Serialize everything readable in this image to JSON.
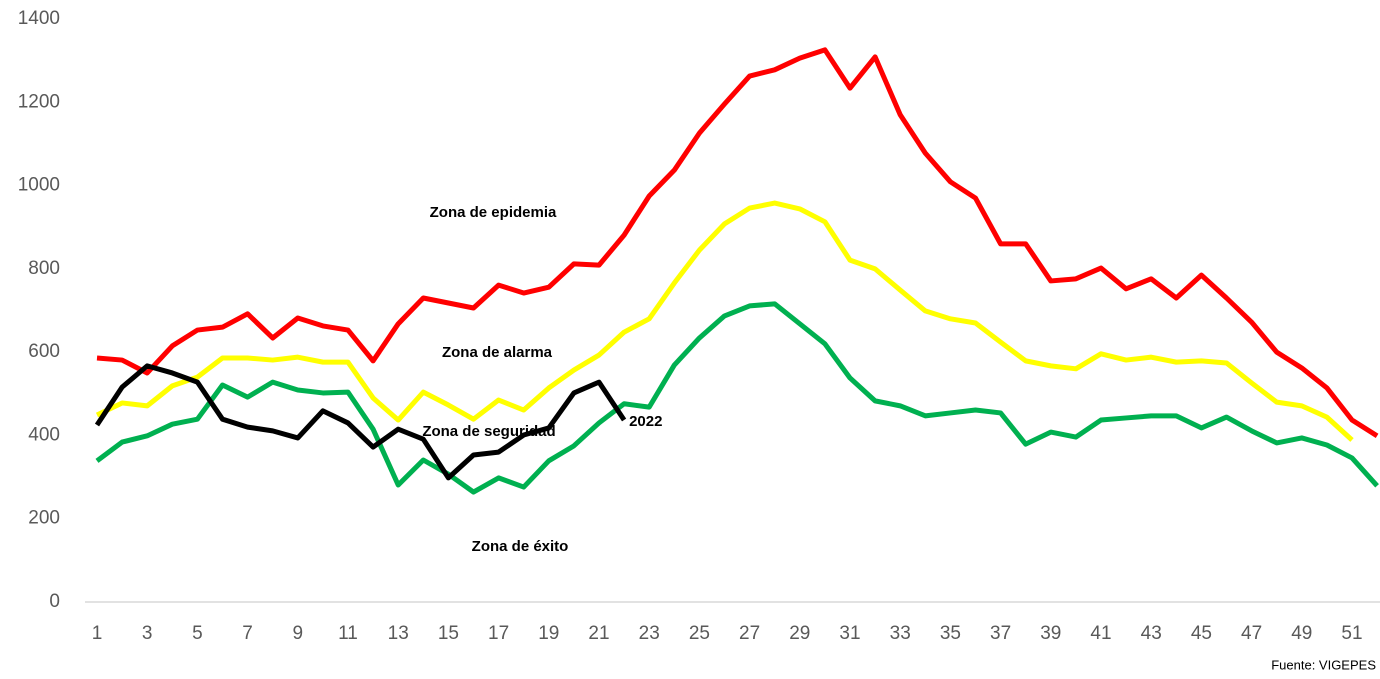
{
  "chart_data": {
    "type": "line",
    "categories": [
      1,
      null,
      3,
      null,
      5,
      null,
      7,
      null,
      9,
      null,
      11,
      null,
      13,
      null,
      15,
      null,
      17,
      null,
      19,
      null,
      21,
      null,
      23,
      null,
      25,
      null,
      27,
      null,
      29,
      null,
      31,
      null,
      33,
      null,
      35,
      null,
      37,
      null,
      39,
      null,
      41,
      null,
      43,
      null,
      45,
      null,
      47,
      null,
      49,
      null,
      51,
      null
    ],
    "ylim": [
      0,
      1400
    ],
    "yticks": [
      0,
      200,
      400,
      600,
      800,
      1000,
      1200,
      1400
    ],
    "grid": false,
    "series": [
      {
        "color": "#ff0000",
        "values": [
          586,
          581,
          550,
          615,
          653,
          660,
          692,
          634,
          682,
          663,
          653,
          579,
          668,
          730,
          718,
          706,
          761,
          742,
          756,
          812,
          809,
          881,
          975,
          1037,
          1126,
          1196,
          1263,
          1278,
          1306,
          1326,
          1234,
          1309,
          1170,
          1078,
          1009,
          970,
          860,
          860,
          771,
          776,
          802,
          752,
          776,
          730,
          785,
          730,
          672,
          600,
          562,
          514,
          437,
          399
        ]
      },
      {
        "color": "#ffff00",
        "values": [
          449,
          478,
          471,
          519,
          540,
          586,
          586,
          581,
          588,
          576,
          576,
          490,
          437,
          504,
          473,
          439,
          485,
          461,
          514,
          557,
          593,
          648,
          680,
          766,
          845,
          908,
          946,
          958,
          944,
          913,
          821,
          800,
          749,
          699,
          680,
          670,
          624,
          579,
          567,
          560,
          596,
          581,
          588,
          576,
          579,
          574,
          526,
          480,
          471,
          444,
          389,
          null
        ]
      },
      {
        "color": "#00b050",
        "values": [
          339,
          384,
          399,
          427,
          439,
          521,
          492,
          528,
          509,
          502,
          504,
          415,
          281,
          341,
          307,
          264,
          298,
          276,
          339,
          375,
          430,
          476,
          468,
          569,
          634,
          687,
          711,
          716,
          668,
          620,
          538,
          483,
          471,
          447,
          454,
          461,
          454,
          379,
          408,
          396,
          437,
          442,
          447,
          447,
          418,
          444,
          411,
          382,
          394,
          377,
          346,
          279
        ]
      },
      {
        "name": "2022",
        "color": "#000000",
        "values": [
          425,
          516,
          567,
          550,
          528,
          439,
          420,
          411,
          394,
          459,
          430,
          372,
          415,
          391,
          298,
          353,
          360,
          401,
          418,
          502,
          528,
          437,
          null,
          null,
          null,
          null,
          null,
          null,
          null,
          null,
          null,
          null,
          null,
          null,
          null,
          null,
          null,
          null,
          null,
          null,
          null,
          null,
          null,
          null,
          null,
          null,
          null,
          null,
          null,
          null,
          null,
          null
        ]
      }
    ],
    "annotations": [
      "Zona de epidemia",
      "Zona de alarma",
      "Zona de seguridad",
      "Zona de éxito"
    ],
    "source": "Fuente: VIGEPES"
  }
}
